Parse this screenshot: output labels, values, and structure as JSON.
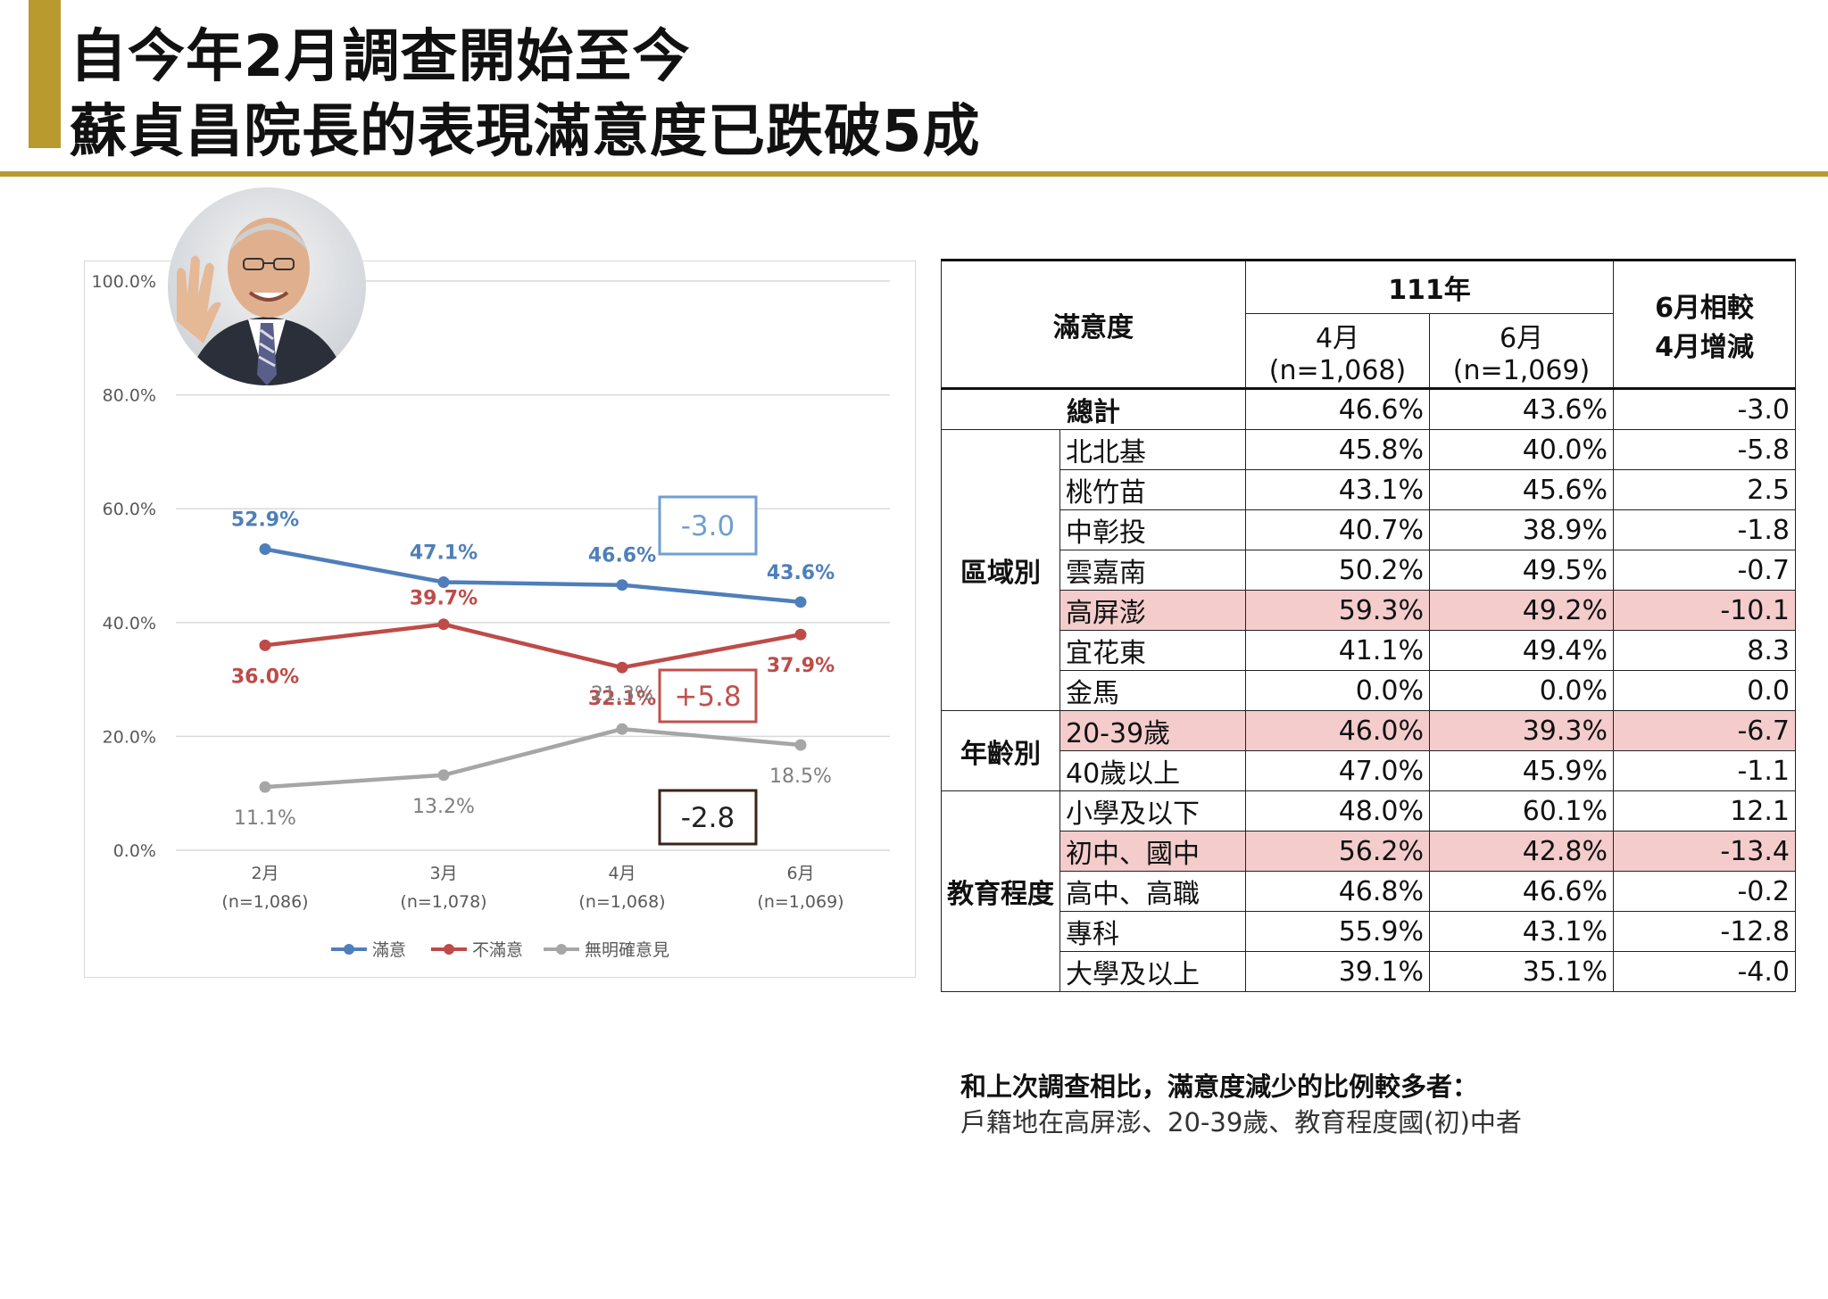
{
  "title": {
    "line1": "自今年2月調查開始至今",
    "line2": "蘇貞昌院長的表現滿意度已跌破5成"
  },
  "chart_data": {
    "type": "line",
    "categories": [
      "2月",
      "3月",
      "4月",
      "6月"
    ],
    "category_samples": [
      "(n=1,086)",
      "(n=1,078)",
      "(n=1,068)",
      "(n=1,069)"
    ],
    "ylim": [
      0,
      100
    ],
    "y_ticks": [
      "0.0%",
      "20.0%",
      "40.0%",
      "60.0%",
      "80.0%",
      "100.0%"
    ],
    "grid": true,
    "legend_position": "bottom",
    "series": [
      {
        "name": "滿意",
        "color": "#4f7fba",
        "values": [
          52.9,
          47.1,
          46.6,
          43.6
        ],
        "labels": [
          "52.9%",
          "47.1%",
          "46.6%",
          "43.6%"
        ]
      },
      {
        "name": "不滿意",
        "color": "#be4b48",
        "values": [
          36.0,
          39.7,
          32.1,
          37.9
        ],
        "labels": [
          "36.0%",
          "39.7%",
          "32.1%",
          "37.9%"
        ]
      },
      {
        "name": "無明確意見",
        "color": "#a6a6a6",
        "values": [
          11.1,
          13.2,
          21.3,
          18.5
        ],
        "labels": [
          "11.1%",
          "13.2%",
          "21.3%",
          "18.5%"
        ]
      }
    ],
    "annotations": [
      {
        "text": "-3.0",
        "color": "#6f9fd0",
        "text_color": "#6f9fd0"
      },
      {
        "text": "+5.8",
        "color": "#c0504d",
        "text_color": "#c0504d"
      },
      {
        "text": "-2.8",
        "color": "#3b2314",
        "text_color": "#222222"
      }
    ]
  },
  "table": {
    "header": {
      "corner": "滿意度",
      "year": "111年",
      "col1_month": "4月",
      "col1_n": "(n=1,068)",
      "col2_month": "6月",
      "col2_n": "(n=1,069)",
      "diff_line1": "6月相較",
      "diff_line2": "4月增減"
    },
    "total": {
      "label": "總計",
      "apr": "46.6%",
      "jun": "43.6%",
      "diff": "-3.0"
    },
    "groups": [
      {
        "name": "區域別",
        "rows": [
          {
            "label": "北北基",
            "apr": "45.8%",
            "jun": "40.0%",
            "diff": "-5.8",
            "highlight": false
          },
          {
            "label": "桃竹苗",
            "apr": "43.1%",
            "jun": "45.6%",
            "diff": "2.5",
            "highlight": false
          },
          {
            "label": "中彰投",
            "apr": "40.7%",
            "jun": "38.9%",
            "diff": "-1.8",
            "highlight": false
          },
          {
            "label": "雲嘉南",
            "apr": "50.2%",
            "jun": "49.5%",
            "diff": "-0.7",
            "highlight": false
          },
          {
            "label": "高屏澎",
            "apr": "59.3%",
            "jun": "49.2%",
            "diff": "-10.1",
            "highlight": true
          },
          {
            "label": "宜花東",
            "apr": "41.1%",
            "jun": "49.4%",
            "diff": "8.3",
            "highlight": false
          },
          {
            "label": "金馬",
            "apr": "0.0%",
            "jun": "0.0%",
            "diff": "0.0",
            "highlight": false
          }
        ]
      },
      {
        "name": "年齡別",
        "rows": [
          {
            "label": "20-39歲",
            "apr": "46.0%",
            "jun": "39.3%",
            "diff": "-6.7",
            "highlight": true
          },
          {
            "label": "40歲以上",
            "apr": "47.0%",
            "jun": "45.9%",
            "diff": "-1.1",
            "highlight": false
          }
        ]
      },
      {
        "name": "教育程度",
        "rows": [
          {
            "label": "小學及以下",
            "apr": "48.0%",
            "jun": "60.1%",
            "diff": "12.1",
            "highlight": false
          },
          {
            "label": "初中、國中",
            "apr": "56.2%",
            "jun": "42.8%",
            "diff": "-13.4",
            "highlight": true
          },
          {
            "label": "高中、高職",
            "apr": "46.8%",
            "jun": "46.6%",
            "diff": "-0.2",
            "highlight": false
          },
          {
            "label": "專科",
            "apr": "55.9%",
            "jun": "43.1%",
            "diff": "-12.8",
            "highlight": false
          },
          {
            "label": "大學及以上",
            "apr": "39.1%",
            "jun": "35.1%",
            "diff": "-4.0",
            "highlight": false
          }
        ]
      }
    ]
  },
  "note": {
    "line1": "和上次調查相比，滿意度減少的比例較多者：",
    "line2": "戶籍地在高屏澎、20-39歲、教育程度國(初)中者"
  }
}
